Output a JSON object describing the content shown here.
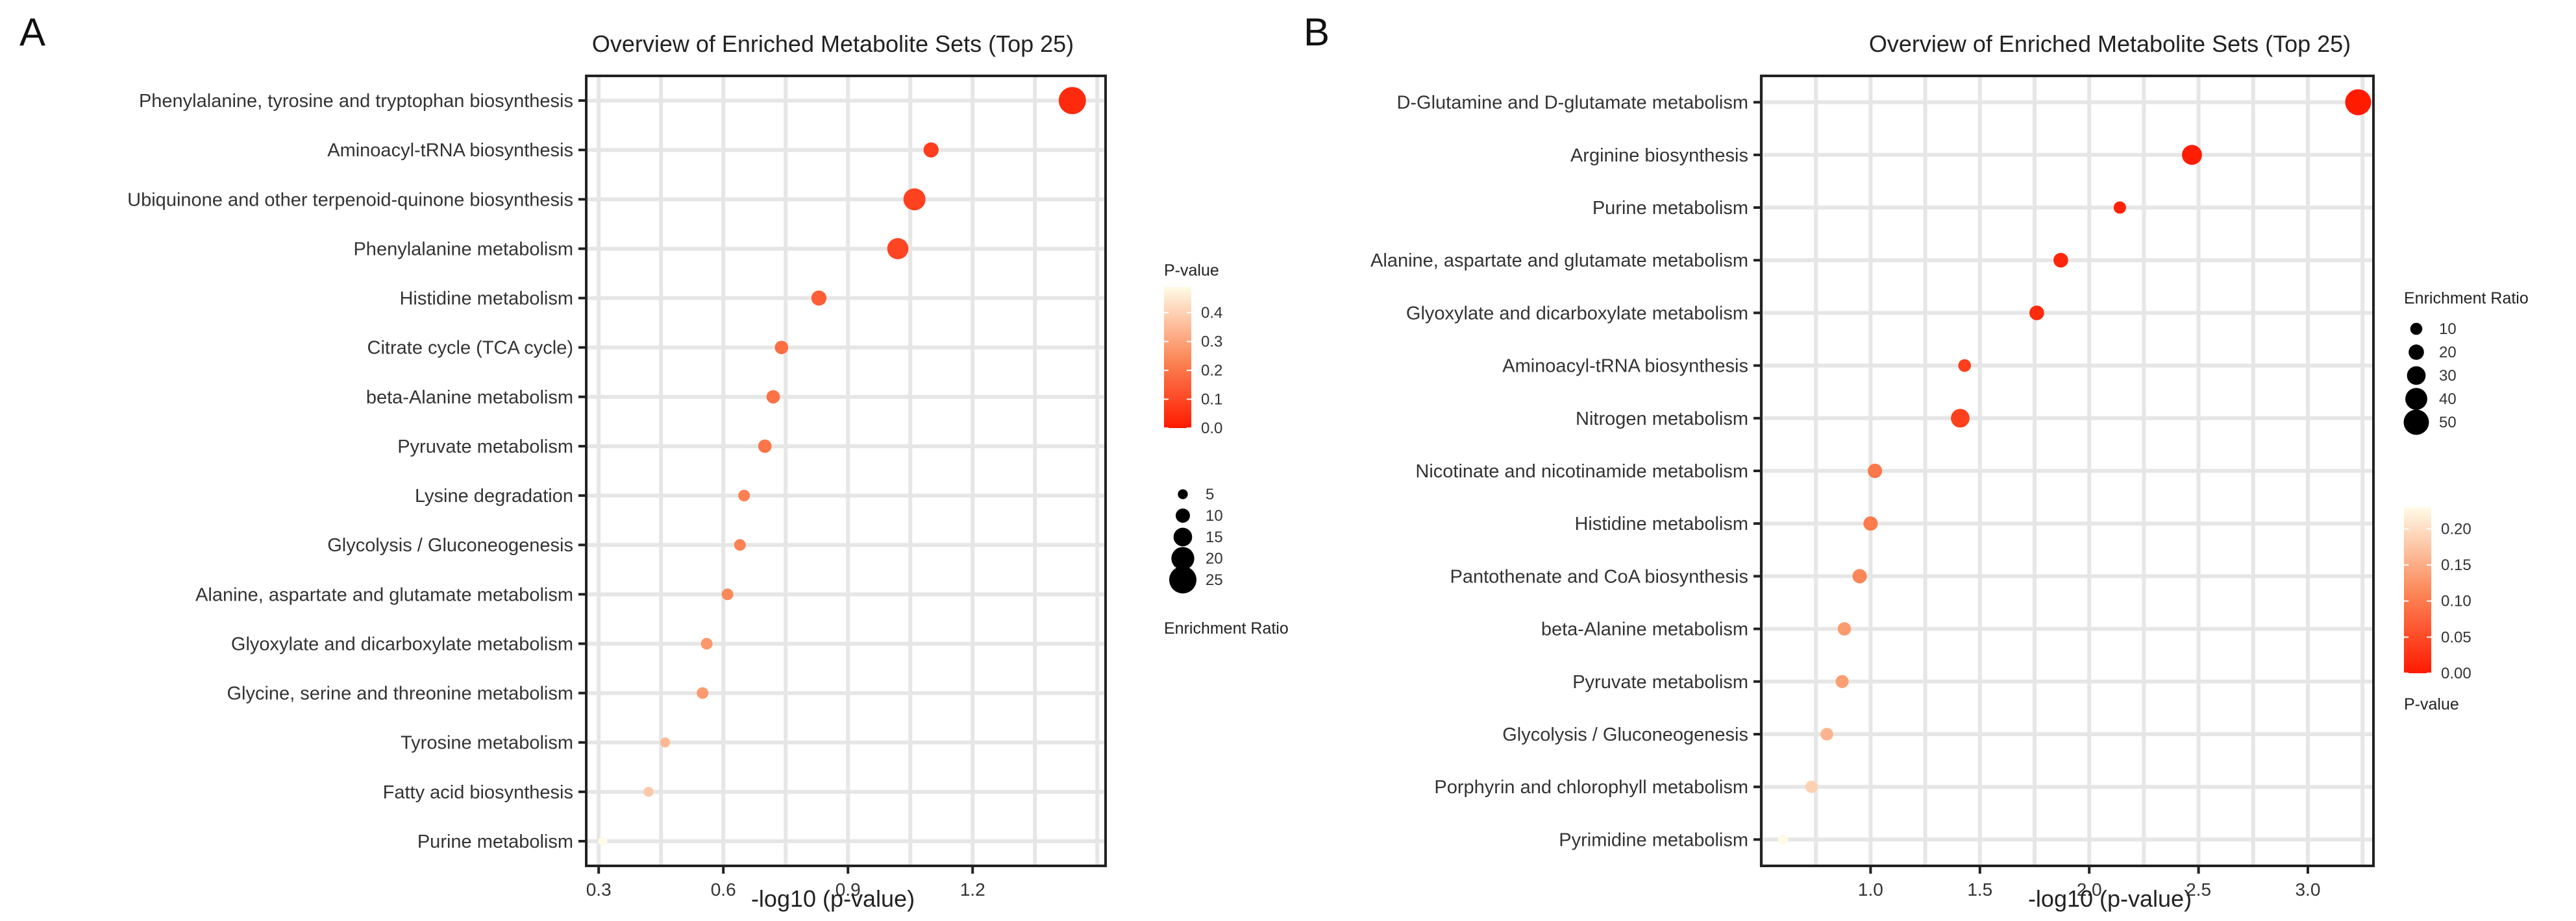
{
  "chart_data": [
    {
      "type": "scatter",
      "panel_label": "A",
      "title": "Overview of Enriched Metabolite Sets (Top 25)",
      "xlabel": "-log10 (p-value)",
      "ylabel": "",
      "xlim": [
        0.27,
        1.52
      ],
      "xticks": [
        0.3,
        0.6,
        0.9,
        1.2
      ],
      "xtick_labels": [
        "0.3",
        "0.6",
        "0.9",
        "1.2"
      ],
      "grid": true,
      "categories": [
        "Phenylalanine, tyrosine and tryptophan biosynthesis",
        "Aminoacyl-tRNA biosynthesis",
        "Ubiquinone and other terpenoid-quinone biosynthesis",
        "Phenylalanine metabolism",
        "Histidine metabolism",
        "Citrate cycle (TCA cycle)",
        "beta-Alanine metabolism",
        "Pyruvate metabolism",
        "Lysine degradation",
        "Glycolysis / Gluconeogenesis",
        "Alanine, aspartate and glutamate metabolism",
        "Glyoxylate and dicarboxylate metabolism",
        "Glycine, serine and threonine metabolism",
        "Tyrosine metabolism",
        "Fatty acid biosynthesis",
        "Purine metabolism"
      ],
      "x": [
        1.44,
        1.1,
        1.06,
        1.02,
        0.83,
        0.74,
        0.72,
        0.7,
        0.65,
        0.64,
        0.61,
        0.56,
        0.55,
        0.46,
        0.42,
        0.31
      ],
      "enrichment_ratio": [
        25,
        11,
        19,
        18,
        11,
        9,
        9,
        9,
        7,
        7,
        7,
        7,
        7,
        5,
        5,
        4
      ],
      "p_value": [
        0.036,
        0.079,
        0.087,
        0.095,
        0.148,
        0.182,
        0.191,
        0.2,
        0.224,
        0.229,
        0.245,
        0.275,
        0.282,
        0.347,
        0.38,
        0.49
      ],
      "color_legend": {
        "title": "P-value",
        "ticks": [
          "0.4",
          "0.3",
          "0.2",
          "0.1",
          "0.0"
        ],
        "range": [
          0.0,
          0.49
        ],
        "position": "right, above size legend"
      },
      "size_legend": {
        "title": "Enrichment Ratio",
        "values": [
          5,
          10,
          15,
          20,
          25
        ],
        "labels": [
          "5",
          "10",
          "15",
          "20",
          "25"
        ],
        "position": "right, below color legend"
      }
    },
    {
      "type": "scatter",
      "panel_label": "B",
      "title": "Overview of Enriched Metabolite Sets (Top 25)",
      "xlabel": "-log10 (p-value)",
      "ylabel": "",
      "xlim": [
        0.5,
        3.3
      ],
      "xticks": [
        1.0,
        1.5,
        2.0,
        2.5,
        3.0
      ],
      "xtick_labels": [
        "1.0",
        "1.5",
        "2.0",
        "2.5",
        "3.0"
      ],
      "grid": true,
      "categories": [
        "D-Glutamine and D-glutamate metabolism",
        "Arginine biosynthesis",
        "Purine metabolism",
        "Alanine, aspartate and glutamate metabolism",
        "Glyoxylate and dicarboxylate metabolism",
        "Aminoacyl-tRNA biosynthesis",
        "Nitrogen metabolism",
        "Nicotinate and nicotinamide metabolism",
        "Histidine metabolism",
        "Pantothenate and CoA biosynthesis",
        "beta-Alanine metabolism",
        "Pyruvate metabolism",
        "Glycolysis / Gluconeogenesis",
        "Porphyrin and chlorophyll metabolism",
        "Pyrimidine metabolism"
      ],
      "x": [
        3.23,
        2.47,
        2.14,
        1.87,
        1.76,
        1.43,
        1.41,
        1.02,
        1.0,
        0.95,
        0.88,
        0.87,
        0.8,
        0.73,
        0.6
      ],
      "enrichment_ratio": [
        52,
        34,
        11,
        18,
        18,
        12,
        30,
        17,
        17,
        17,
        14,
        13,
        12,
        11,
        5
      ],
      "p_value": [
        0.0006,
        0.0034,
        0.0072,
        0.0135,
        0.0174,
        0.0372,
        0.0389,
        0.0955,
        0.1,
        0.112,
        0.132,
        0.135,
        0.158,
        0.186,
        0.251
      ],
      "size_legend": {
        "title": "Enrichment Ratio",
        "values": [
          10,
          20,
          30,
          40,
          50
        ],
        "labels": [
          "10",
          "20",
          "30",
          "40",
          "50"
        ],
        "position": "right, above color legend"
      },
      "color_legend": {
        "title": "P-value",
        "ticks": [
          "0.20",
          "0.15",
          "0.10",
          "0.05",
          "0.00"
        ],
        "range": [
          0.0,
          0.23
        ],
        "position": "right, below size legend"
      }
    }
  ]
}
